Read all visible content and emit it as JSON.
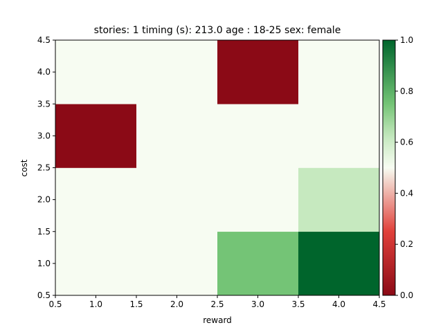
{
  "chart_data": {
    "type": "heatmap",
    "title": "stories: 1 timing (s): 213.0 age : 18-25 sex: female",
    "xlabel": "reward",
    "ylabel": "cost",
    "x": [
      1,
      2,
      3,
      4
    ],
    "y": [
      1,
      2,
      3,
      4
    ],
    "xlim": [
      0.5,
      4.5
    ],
    "ylim": [
      0.5,
      4.5
    ],
    "xticks": [
      "0.5",
      "1.0",
      "1.5",
      "2.0",
      "2.5",
      "3.0",
      "3.5",
      "4.0",
      "4.5"
    ],
    "yticks": [
      "0.5",
      "1.0",
      "1.5",
      "2.0",
      "2.5",
      "3.0",
      "3.5",
      "4.0",
      "4.5"
    ],
    "values": [
      [
        0.5,
        0.5,
        0.75,
        1.0
      ],
      [
        0.5,
        0.5,
        0.5,
        0.62
      ],
      [
        0.0,
        0.5,
        0.5,
        0.5
      ],
      [
        0.5,
        0.5,
        0.0,
        0.5
      ]
    ],
    "colorbar": {
      "colormap": "RdYlGn-style (red 0 → white 0.5 → green 1)",
      "range": [
        0.0,
        1.0
      ],
      "ticks": [
        "0.0",
        "0.2",
        "0.4",
        "0.6",
        "0.8",
        "1.0"
      ]
    },
    "colors": {
      "low": "#8b0a16",
      "mid": "#f7fcf2",
      "high": "#00652c"
    }
  }
}
